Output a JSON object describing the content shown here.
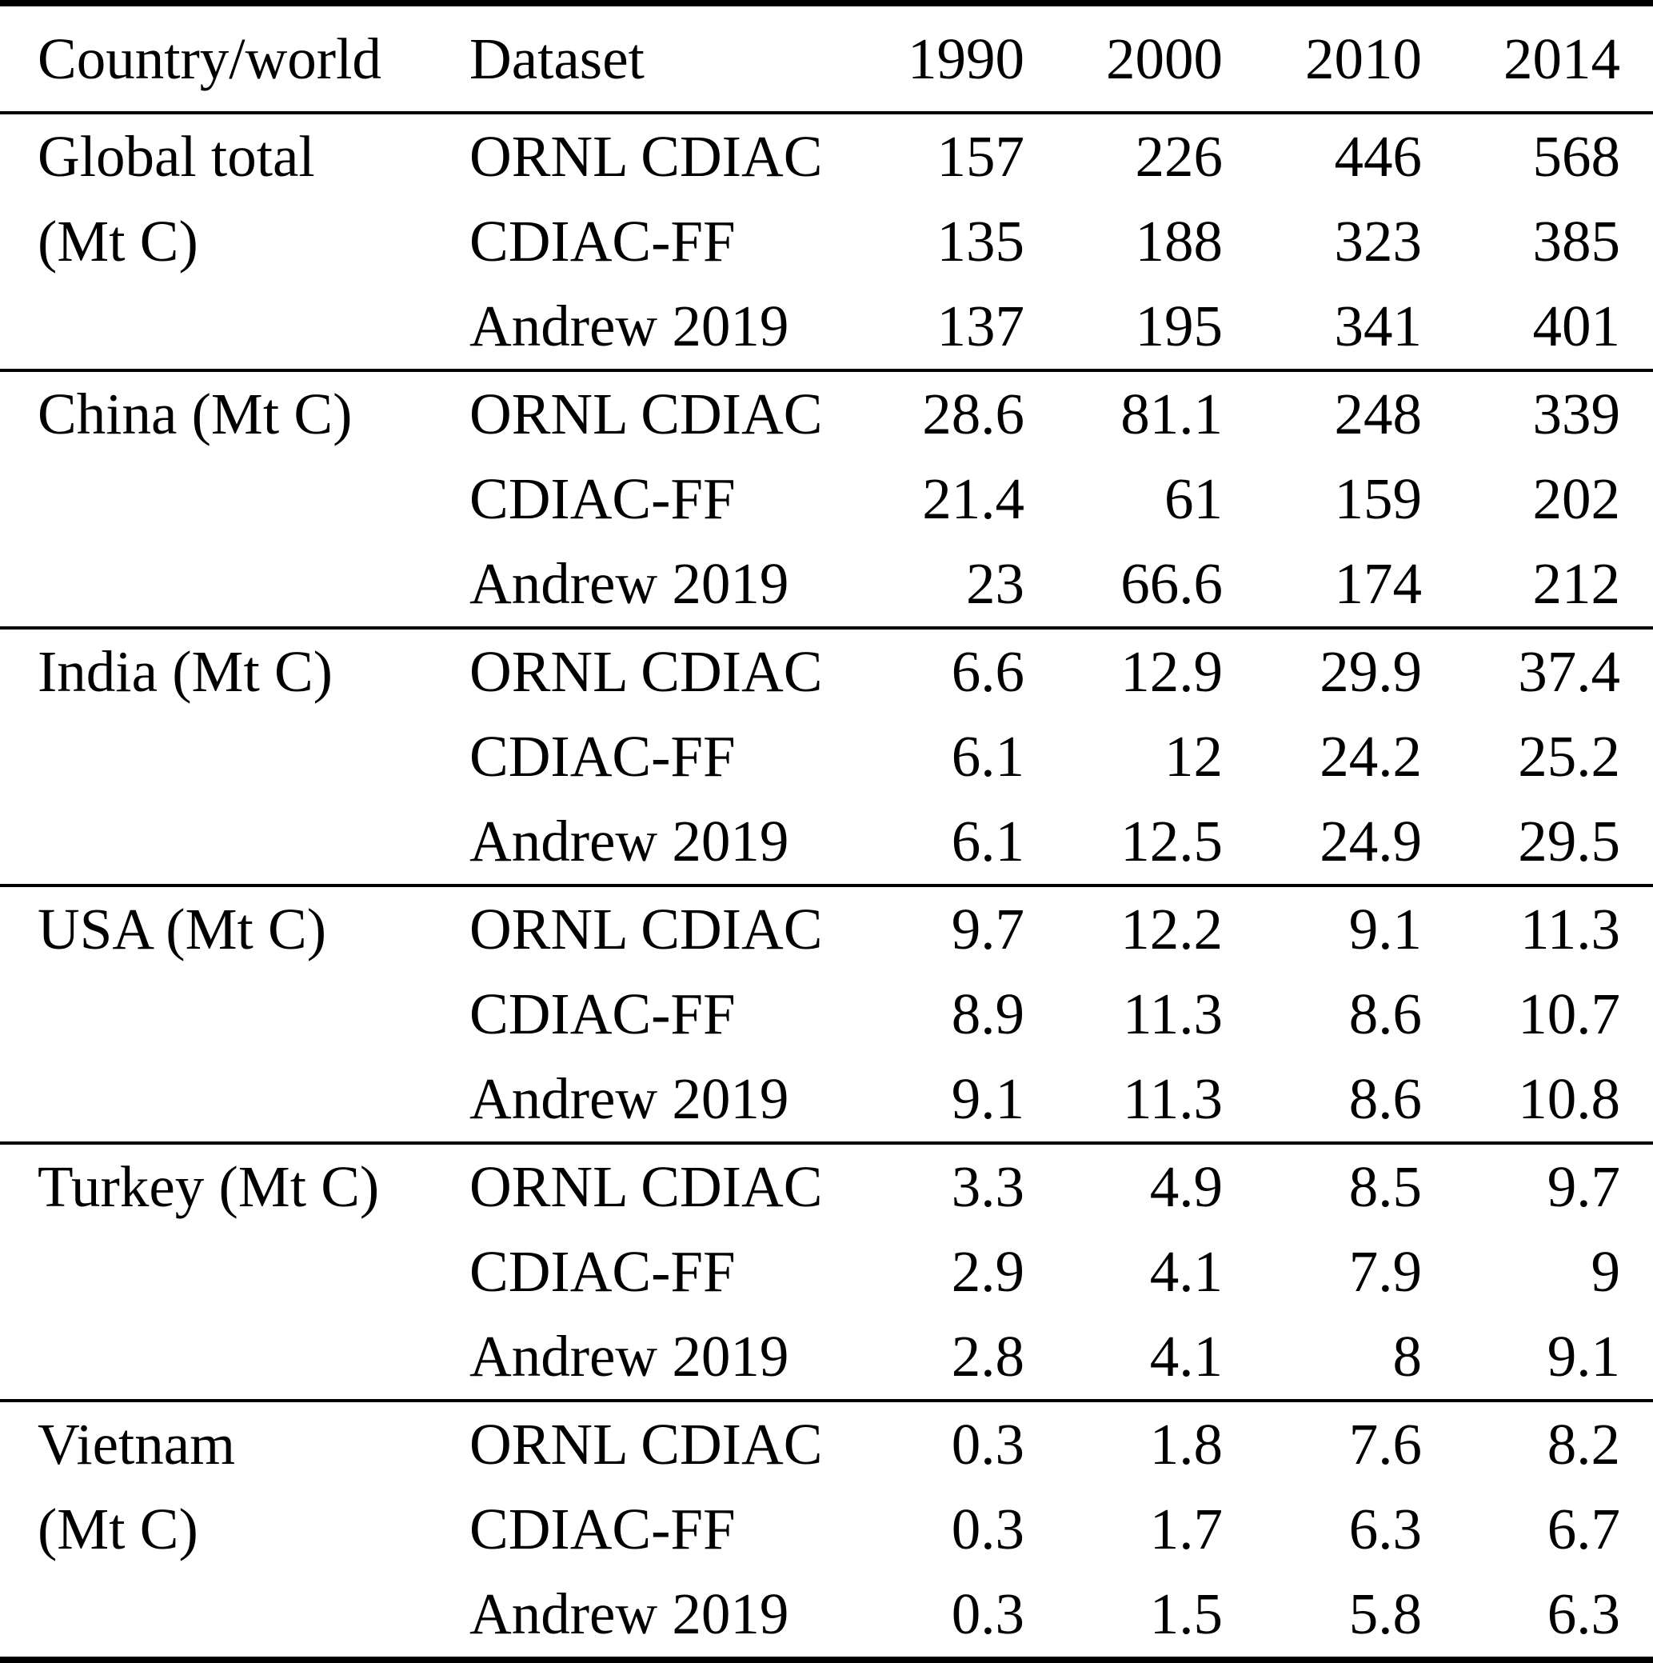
{
  "table": {
    "unit_note": "(Mt C)",
    "columns": [
      "Country/world",
      "Dataset",
      "1990",
      "2000",
      "2010",
      "2014"
    ],
    "sections": [
      {
        "country": "Global total (Mt C)",
        "country_lines": [
          "Global total",
          "(Mt C)"
        ],
        "rows": [
          {
            "dataset": "ORNL CDIAC",
            "values": [
              "157",
              "226",
              "446",
              "568"
            ]
          },
          {
            "dataset": "CDIAC-FF",
            "values": [
              "135",
              "188",
              "323",
              "385"
            ]
          },
          {
            "dataset": "Andrew 2019",
            "values": [
              "137",
              "195",
              "341",
              "401"
            ]
          }
        ]
      },
      {
        "country": "China (Mt C)",
        "country_lines": [
          "China (Mt C)"
        ],
        "rows": [
          {
            "dataset": "ORNL CDIAC",
            "values": [
              "28.6",
              "81.1",
              "248",
              "339"
            ]
          },
          {
            "dataset": "CDIAC-FF",
            "values": [
              "21.4",
              "61",
              "159",
              "202"
            ]
          },
          {
            "dataset": "Andrew 2019",
            "values": [
              "23",
              "66.6",
              "174",
              "212"
            ]
          }
        ]
      },
      {
        "country": "India (Mt C)",
        "country_lines": [
          "India (Mt C)"
        ],
        "rows": [
          {
            "dataset": "ORNL CDIAC",
            "values": [
              "6.6",
              "12.9",
              "29.9",
              "37.4"
            ]
          },
          {
            "dataset": "CDIAC-FF",
            "values": [
              "6.1",
              "12",
              "24.2",
              "25.2"
            ]
          },
          {
            "dataset": "Andrew 2019",
            "values": [
              "6.1",
              "12.5",
              "24.9",
              "29.5"
            ]
          }
        ]
      },
      {
        "country": "USA (Mt C)",
        "country_lines": [
          "USA (Mt C)"
        ],
        "rows": [
          {
            "dataset": "ORNL CDIAC",
            "values": [
              "9.7",
              "12.2",
              "9.1",
              "11.3"
            ]
          },
          {
            "dataset": "CDIAC-FF",
            "values": [
              "8.9",
              "11.3",
              "8.6",
              "10.7"
            ]
          },
          {
            "dataset": "Andrew 2019",
            "values": [
              "9.1",
              "11.3",
              "8.6",
              "10.8"
            ]
          }
        ]
      },
      {
        "country": "Turkey (Mt C)",
        "country_lines": [
          "Turkey (Mt C)"
        ],
        "rows": [
          {
            "dataset": "ORNL CDIAC",
            "values": [
              "3.3",
              "4.9",
              "8.5",
              "9.7"
            ]
          },
          {
            "dataset": "CDIAC-FF",
            "values": [
              "2.9",
              "4.1",
              "7.9",
              "9"
            ]
          },
          {
            "dataset": "Andrew 2019",
            "values": [
              "2.8",
              "4.1",
              "8",
              "9.1"
            ]
          }
        ]
      },
      {
        "country": "Vietnam (Mt C)",
        "country_lines": [
          "Vietnam",
          "(Mt C)"
        ],
        "rows": [
          {
            "dataset": "ORNL CDIAC",
            "values": [
              "0.3",
              "1.8",
              "7.6",
              "8.2"
            ]
          },
          {
            "dataset": "CDIAC-FF",
            "values": [
              "0.3",
              "1.7",
              "6.3",
              "6.7"
            ]
          },
          {
            "dataset": "Andrew 2019",
            "values": [
              "0.3",
              "1.5",
              "5.8",
              "6.3"
            ]
          }
        ]
      }
    ]
  }
}
